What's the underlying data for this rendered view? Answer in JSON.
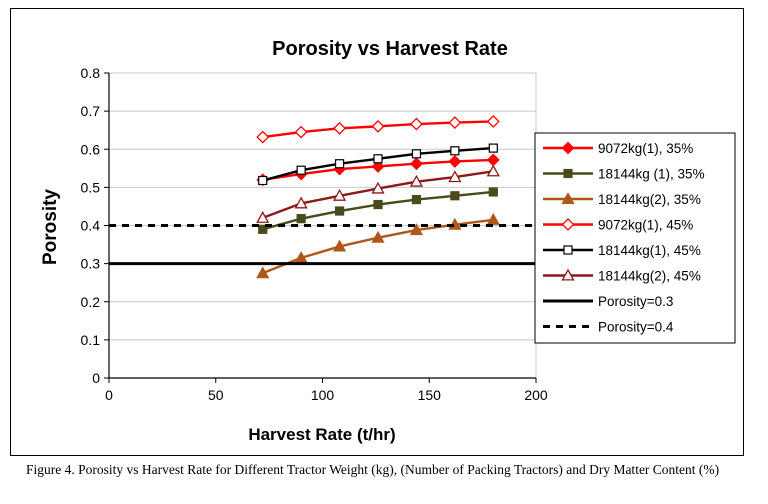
{
  "caption": "Figure 4. Porosity vs Harvest Rate for Different Tractor Weight (kg), (Number of Packing Tractors) and Dry Matter Content  (%)",
  "chart_data": {
    "type": "line",
    "title": "Porosity vs Harvest Rate",
    "xlabel": "Harvest Rate (t/hr)",
    "ylabel": "Porosity",
    "xlim": [
      0,
      200
    ],
    "ylim": [
      0,
      0.8
    ],
    "xticks": [
      "0",
      "50",
      "100",
      "150",
      "200"
    ],
    "yticks": [
      "0",
      "0.1",
      "0.2",
      "0.3",
      "0.4",
      "0.5",
      "0.6",
      "0.7",
      "0.8"
    ],
    "grid": "horizontal",
    "legend_position": "right",
    "series": [
      {
        "name": "9072kg(1), 35%",
        "color": "#ff0000",
        "marker": "diamond-filled",
        "x": [
          72,
          90,
          108,
          126,
          144,
          162,
          180
        ],
        "y": [
          0.52,
          0.535,
          0.548,
          0.555,
          0.562,
          0.568,
          0.572
        ]
      },
      {
        "name": "18144kg (1), 35%",
        "color": "#4a4a1a",
        "marker": "square-filled",
        "x": [
          72,
          90,
          108,
          126,
          144,
          162,
          180
        ],
        "y": [
          0.39,
          0.418,
          0.438,
          0.455,
          0.468,
          0.478,
          0.488
        ]
      },
      {
        "name": "18144kg(2), 35%",
        "color": "#b0561a",
        "marker": "triangle-filled",
        "x": [
          72,
          90,
          108,
          126,
          144,
          162,
          180
        ],
        "y": [
          0.275,
          0.315,
          0.345,
          0.368,
          0.388,
          0.402,
          0.415
        ]
      },
      {
        "name": "9072kg(1), 45%",
        "color": "#ff0000",
        "marker": "diamond-open",
        "x": [
          72,
          90,
          108,
          126,
          144,
          162,
          180
        ],
        "y": [
          0.632,
          0.645,
          0.655,
          0.66,
          0.666,
          0.67,
          0.673
        ]
      },
      {
        "name": "18144kg(1), 45%",
        "color": "#000000",
        "marker": "square-open",
        "x": [
          72,
          90,
          108,
          126,
          144,
          162,
          180
        ],
        "y": [
          0.518,
          0.545,
          0.562,
          0.575,
          0.588,
          0.596,
          0.603
        ]
      },
      {
        "name": "18144kg(2), 45%",
        "color": "#8b1a1a",
        "marker": "triangle-open",
        "x": [
          72,
          90,
          108,
          126,
          144,
          162,
          180
        ],
        "y": [
          0.42,
          0.458,
          0.478,
          0.497,
          0.515,
          0.527,
          0.542
        ]
      },
      {
        "name": "Porosity=0.3",
        "color": "#000000",
        "style": "solid-thick",
        "x": [
          0,
          200
        ],
        "y": [
          0.3,
          0.3
        ]
      },
      {
        "name": "Porosity=0.4",
        "color": "#000000",
        "style": "dashed-thick",
        "x": [
          0,
          200
        ],
        "y": [
          0.4,
          0.4
        ]
      }
    ]
  }
}
